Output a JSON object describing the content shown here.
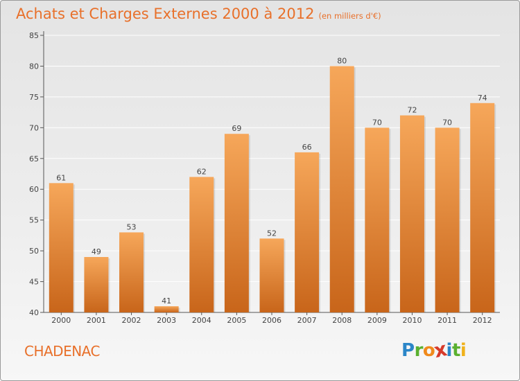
{
  "title": "Achats et Charges Externes 2000 à 2012",
  "subtitle": "(en milliers d'€)",
  "place": "CHADENAC",
  "logo": {
    "text": "Proxiti",
    "letters": [
      {
        "ch": "P",
        "color": "#2b86c8"
      },
      {
        "ch": "r",
        "color": "#5ab030"
      },
      {
        "ch": "o",
        "color": "#f08a1c"
      },
      {
        "ch": "x",
        "color": "#d63a2a"
      },
      {
        "ch": "i",
        "color": "#2b86c8"
      },
      {
        "ch": "t",
        "color": "#5ab030"
      },
      {
        "ch": "i",
        "color": "#f0b21c"
      }
    ]
  },
  "colors": {
    "title": "#e8702a",
    "bar_top": "#f6a75a",
    "bar_bottom": "#c8651a",
    "axis": "#555555",
    "grid": "#ffffff",
    "label": "#444444"
  },
  "chart_data": {
    "type": "bar",
    "categories": [
      "2000",
      "2001",
      "2002",
      "2003",
      "2004",
      "2005",
      "2006",
      "2007",
      "2008",
      "2009",
      "2010",
      "2011",
      "2012"
    ],
    "values": [
      61,
      49,
      53,
      41,
      62,
      69,
      52,
      66,
      80,
      70,
      72,
      70,
      74
    ],
    "ylim": [
      40,
      85
    ],
    "yticks": [
      40,
      45,
      50,
      55,
      60,
      65,
      70,
      75,
      80,
      85
    ],
    "grid": true,
    "data_labels": true
  }
}
